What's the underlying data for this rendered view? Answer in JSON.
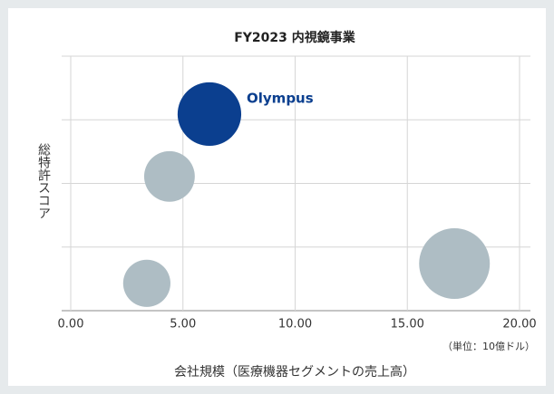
{
  "chart_data": {
    "type": "bubble",
    "title": "FY2023 内視鏡事業",
    "xlabel": "会社規模（医療機器セグメントの売上高）",
    "ylabel": "総特許スコア",
    "unit_note": "（単位：10億ドル）",
    "points": [
      {
        "label": "Olympus",
        "x": 6.18,
        "y": 3.09,
        "size": 12.3,
        "color": "#0b3f8f"
      },
      {
        "x": 4.4,
        "y": 2.11,
        "size": 7.8,
        "color": "#aebdc4"
      },
      {
        "x": 3.39,
        "y": 0.43,
        "size": 6.8,
        "color": "#aebdc4"
      },
      {
        "x": 17.1,
        "y": 0.74,
        "size": 15.2,
        "color": "#aebdc4"
      }
    ],
    "xlim": [
      0,
      20
    ],
    "xticks": [
      {
        "value": 0,
        "label": "0.00"
      },
      {
        "value": 5,
        "label": "5.00"
      },
      {
        "value": 10,
        "label": "10.00"
      },
      {
        "value": 15,
        "label": "15.00"
      },
      {
        "value": 20,
        "label": "20.00"
      }
    ],
    "ylim": [
      0,
      4
    ],
    "yticks": [
      0,
      1,
      2,
      3,
      4
    ],
    "grid": true
  }
}
